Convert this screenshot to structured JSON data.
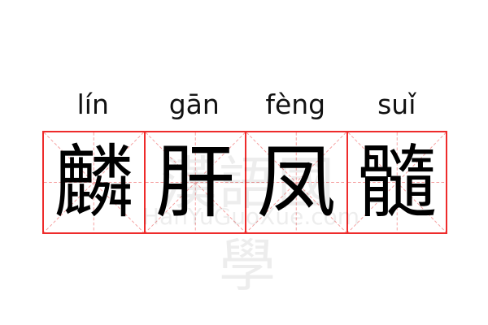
{
  "pinyin": [
    "lín",
    "gān",
    "fèng",
    "suǐ"
  ],
  "characters": [
    "麟",
    "肝",
    "凤",
    "髓"
  ],
  "watermark": {
    "chinese": "漢語國學",
    "latin": "HanYuGuoXue.com"
  },
  "colors": {
    "grid_border": "#ee2b2b",
    "grid_guides": "#f5a0a0",
    "text": "#000000"
  }
}
